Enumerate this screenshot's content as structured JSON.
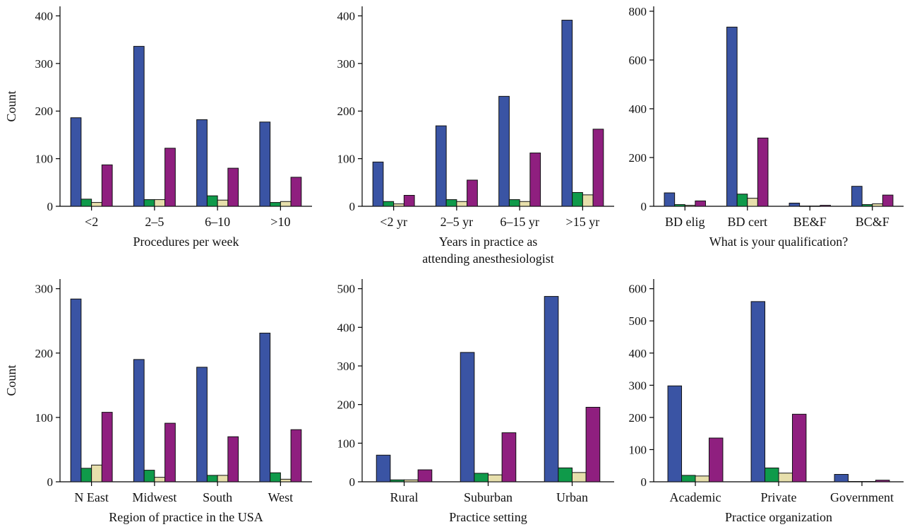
{
  "colors": [
    "#3a54a4",
    "#0f9a4a",
    "#e7dfac",
    "#8f1f7f"
  ],
  "chart_data": [
    {
      "type": "bar",
      "xlabel": "Procedures per week",
      "ylabel": "Count",
      "ylim": [
        0,
        420
      ],
      "yticks": [
        0,
        100,
        200,
        300,
        400
      ],
      "categories": [
        "<2",
        "2–5",
        "6–10",
        ">10"
      ],
      "series": [
        {
          "values": [
            186,
            336,
            182,
            177
          ]
        },
        {
          "values": [
            15,
            14,
            22,
            8
          ]
        },
        {
          "values": [
            8,
            14,
            13,
            10
          ]
        },
        {
          "values": [
            87,
            122,
            80,
            61
          ]
        }
      ]
    },
    {
      "type": "bar",
      "xlabel": "Years in practice as\nattending anesthesiologist",
      "ylabel": "",
      "ylim": [
        0,
        420
      ],
      "yticks": [
        0,
        100,
        200,
        300,
        400
      ],
      "categories": [
        "<2 yr",
        "2–5 yr",
        "6–15 yr",
        ">15 yr"
      ],
      "series": [
        {
          "values": [
            93,
            169,
            231,
            391
          ]
        },
        {
          "values": [
            10,
            14,
            14,
            29
          ]
        },
        {
          "values": [
            5,
            10,
            10,
            24
          ]
        },
        {
          "values": [
            23,
            55,
            112,
            162
          ]
        }
      ]
    },
    {
      "type": "bar",
      "xlabel": "What is your qualification?",
      "ylabel": "",
      "ylim": [
        0,
        820
      ],
      "yticks": [
        0,
        200,
        400,
        600,
        800
      ],
      "categories": [
        "BD elig",
        "BD cert",
        "BE&F",
        "BC&F"
      ],
      "series": [
        {
          "values": [
            55,
            735,
            13,
            82
          ]
        },
        {
          "values": [
            7,
            50,
            1,
            7
          ]
        },
        {
          "values": [
            4,
            33,
            1,
            10
          ]
        },
        {
          "values": [
            22,
            280,
            4,
            46
          ]
        }
      ]
    },
    {
      "type": "bar",
      "xlabel": "Region of practice in the USA",
      "ylabel": "Count",
      "ylim": [
        0,
        315
      ],
      "yticks": [
        0,
        100,
        200,
        300
      ],
      "categories": [
        "N East",
        "Midwest",
        "South",
        "West"
      ],
      "series": [
        {
          "values": [
            284,
            190,
            178,
            231
          ]
        },
        {
          "values": [
            21,
            18,
            10,
            14
          ]
        },
        {
          "values": [
            26,
            7,
            10,
            4
          ]
        },
        {
          "values": [
            108,
            91,
            70,
            81
          ]
        }
      ]
    },
    {
      "type": "bar",
      "xlabel": "Practice setting",
      "ylabel": "",
      "ylim": [
        0,
        525
      ],
      "yticks": [
        0,
        100,
        200,
        300,
        400,
        500
      ],
      "categories": [
        "Rural",
        "Suburban",
        "Urban"
      ],
      "series": [
        {
          "values": [
            69,
            335,
            480
          ]
        },
        {
          "values": [
            5,
            22,
            36
          ]
        },
        {
          "values": [
            5,
            18,
            24
          ]
        },
        {
          "values": [
            31,
            127,
            193
          ]
        }
      ]
    },
    {
      "type": "bar",
      "xlabel": "Practice organization",
      "ylabel": "",
      "ylim": [
        0,
        630
      ],
      "yticks": [
        0,
        100,
        200,
        300,
        400,
        500,
        600
      ],
      "categories": [
        "Academic",
        "Private",
        "Government"
      ],
      "series": [
        {
          "values": [
            298,
            560,
            23
          ]
        },
        {
          "values": [
            20,
            43,
            1
          ]
        },
        {
          "values": [
            18,
            27,
            1
          ]
        },
        {
          "values": [
            136,
            210,
            5
          ]
        }
      ]
    }
  ]
}
